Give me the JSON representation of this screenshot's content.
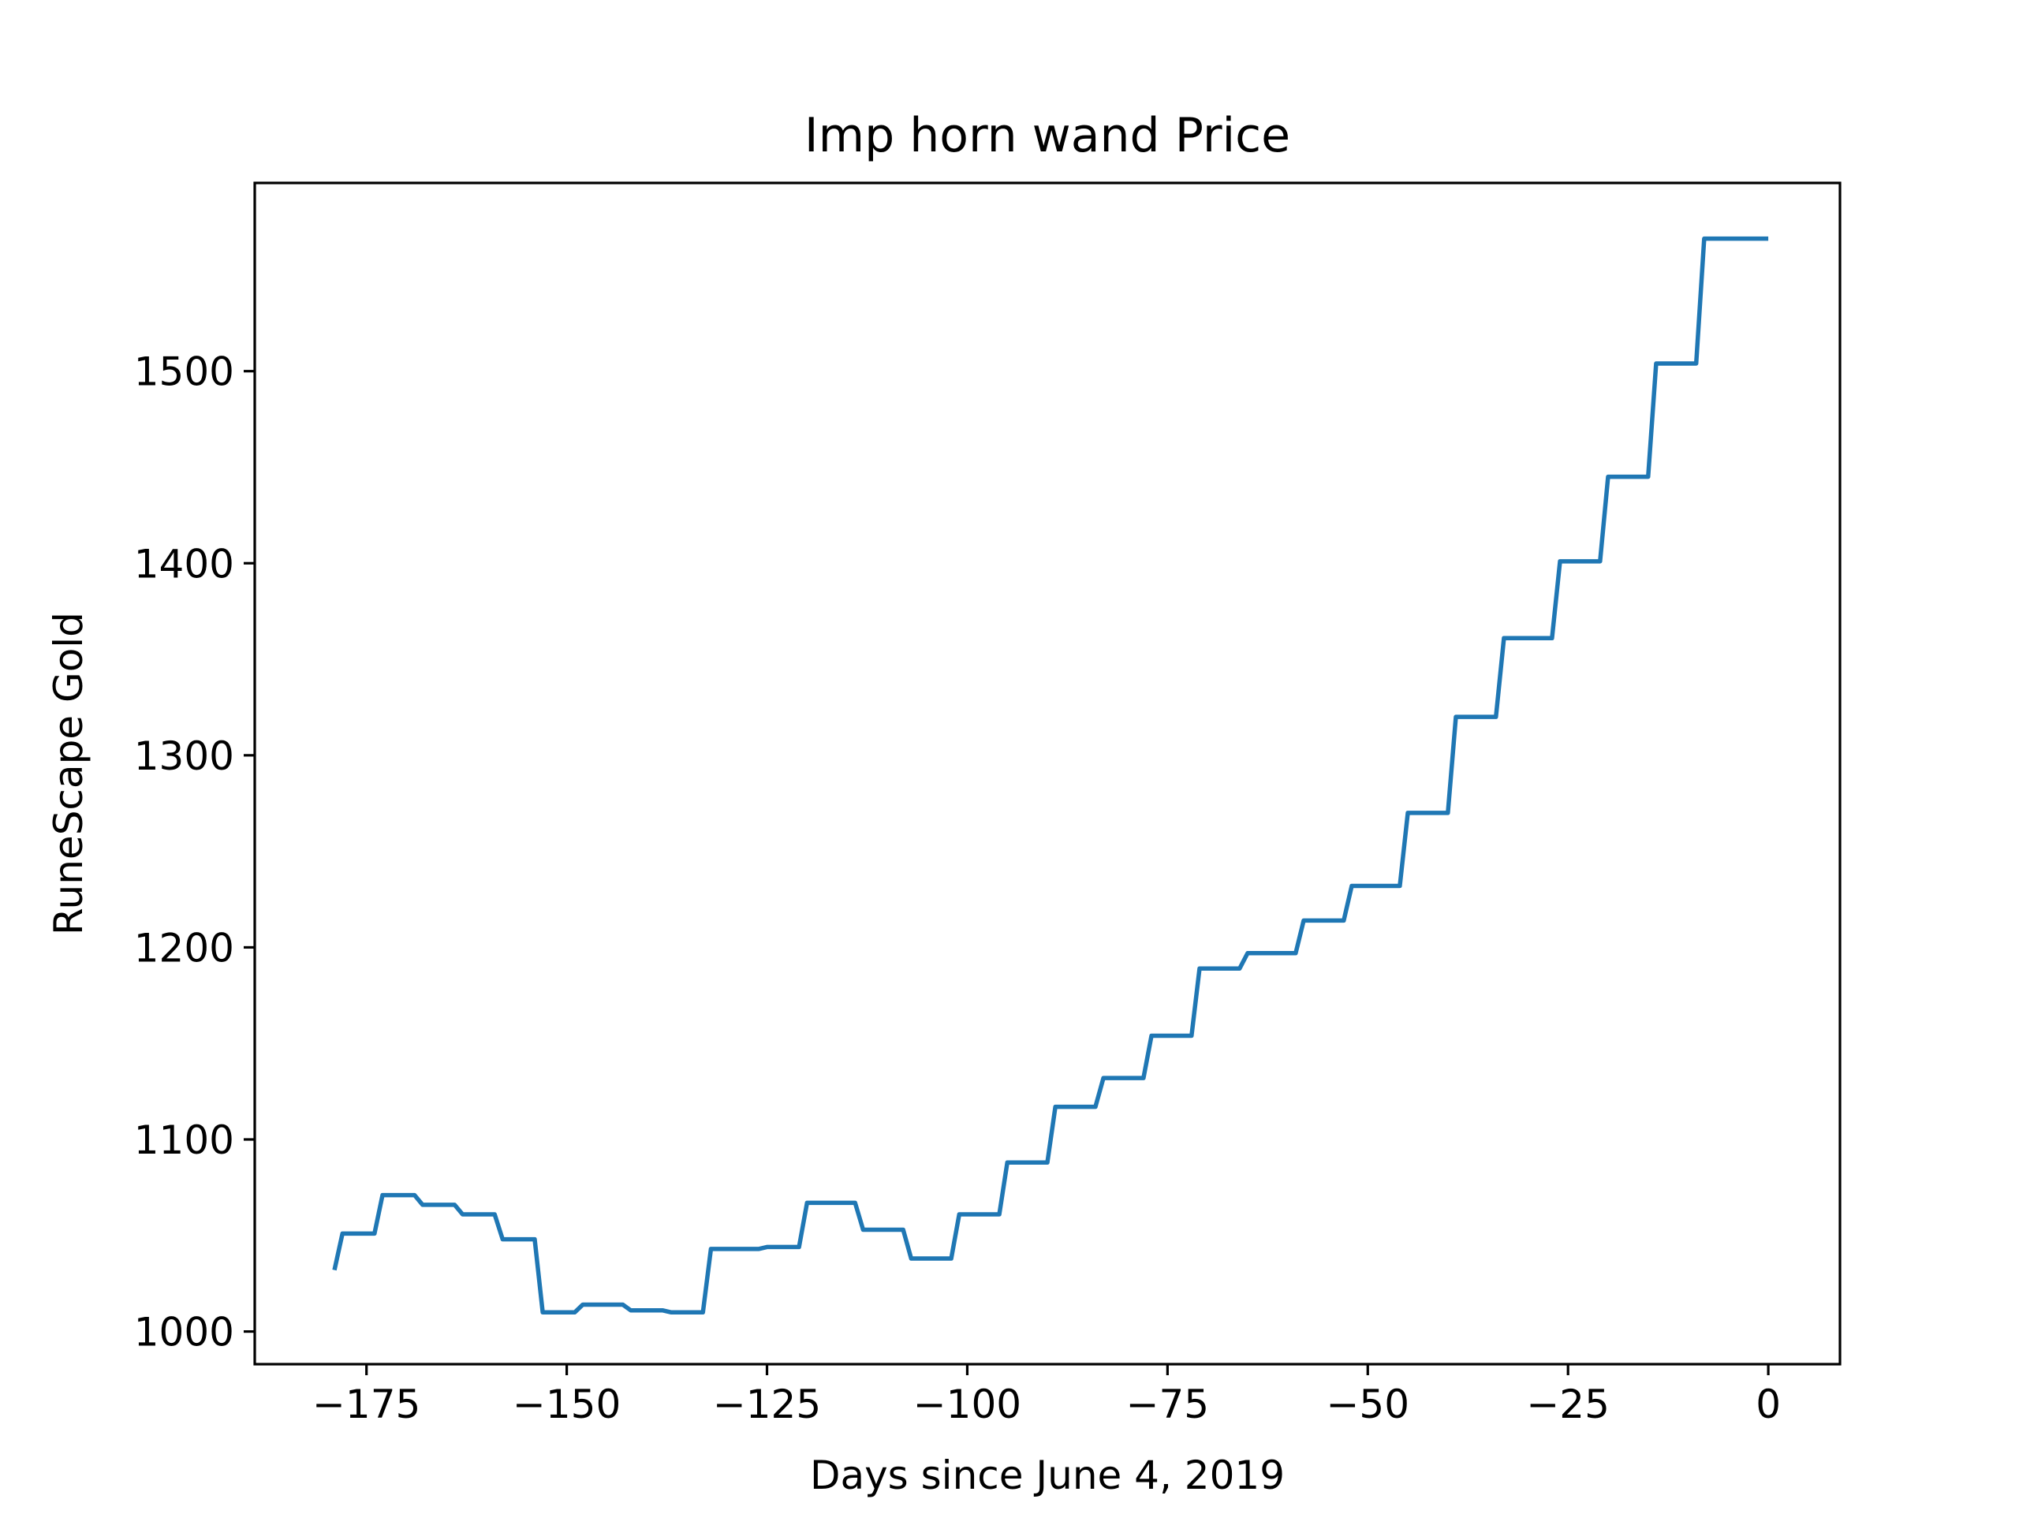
{
  "chart_data": {
    "type": "line",
    "title": "Imp horn wand Price",
    "xlabel": "Days since June 4, 2019",
    "ylabel": "RuneScape Gold",
    "xlim": [
      -188.95,
      8.95
    ],
    "ylim": [
      983,
      1598
    ],
    "xticks": [
      -175,
      -150,
      -125,
      -100,
      -75,
      -50,
      -25,
      0
    ],
    "xtick_labels": [
      "−175",
      "−150",
      "−125",
      "−100",
      "−75",
      "−50",
      "−25",
      "0"
    ],
    "yticks": [
      1000,
      1100,
      1200,
      1300,
      1400,
      1500
    ],
    "ytick_labels": [
      "1000",
      "1100",
      "1200",
      "1300",
      "1400",
      "1500"
    ],
    "grid": false,
    "colors": {
      "series": "#1f77b4"
    },
    "series": [
      {
        "x": [
          -179,
          -178,
          -174,
          -173,
          -169,
          -168,
          -164,
          -163,
          -159,
          -158,
          -154,
          -153,
          -149,
          -148,
          -143,
          -142,
          -138,
          -137,
          -133,
          -132,
          -126,
          -125,
          -121,
          -120,
          -114,
          -113,
          -108,
          -107,
          -102,
          -101,
          -96,
          -95,
          -90,
          -89,
          -84,
          -83,
          -78,
          -77,
          -72,
          -71,
          -66,
          -65,
          -59,
          -58,
          -53,
          -52,
          -46,
          -45,
          -40,
          -39,
          -34,
          -33,
          -27,
          -26,
          -21,
          -20,
          -15,
          -14,
          -9,
          -8,
          -3,
          -2,
          0
        ],
        "y": [
          1032,
          1051,
          1051,
          1071,
          1071,
          1066,
          1066,
          1061,
          1061,
          1048,
          1048,
          1010,
          1010,
          1014,
          1014,
          1011,
          1011,
          1010,
          1010,
          1043,
          1043,
          1044,
          1044,
          1067,
          1067,
          1053,
          1053,
          1038,
          1038,
          1061,
          1061,
          1088,
          1088,
          1117,
          1117,
          1132,
          1132,
          1154,
          1154,
          1189,
          1189,
          1197,
          1197,
          1214,
          1214,
          1232,
          1232,
          1270,
          1270,
          1320,
          1320,
          1361,
          1361,
          1401,
          1401,
          1445,
          1445,
          1504,
          1504,
          1569,
          1569,
          1569,
          1569
        ]
      }
    ]
  }
}
